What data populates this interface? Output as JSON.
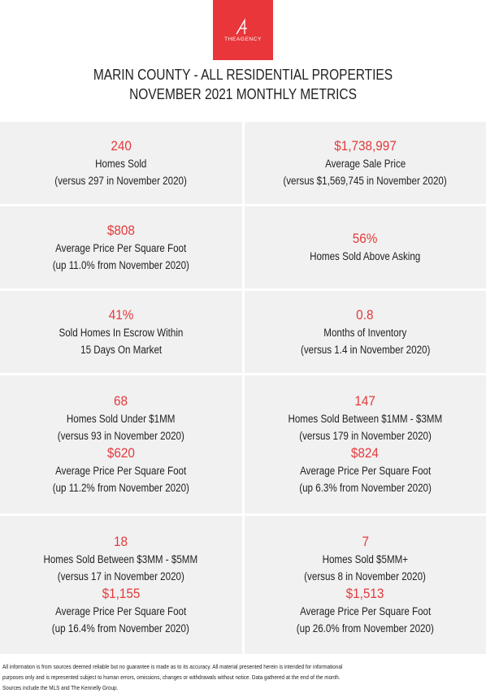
{
  "logo": {
    "text": "THEAGENCY",
    "color": "#e8363a"
  },
  "header": {
    "title_line1": "MARIN COUNTY - ALL RESIDENTIAL PROPERTIES",
    "title_line2": "NOVEMBER 2021 MONTHLY METRICS"
  },
  "accent_color": "#e3393c",
  "metrics": {
    "homes_sold": {
      "value": "240",
      "label": "Homes Sold",
      "note": "(versus 297 in November 2020)"
    },
    "avg_sale_price": {
      "value": "$1,738,997",
      "label": "Average Sale Price",
      "note": "(versus $1,569,745 in November 2020)"
    },
    "avg_ppsf": {
      "value": "$808",
      "label": "Average Price Per Square Foot",
      "note": "(up 11.0% from November 2020)"
    },
    "above_asking": {
      "value": "56%",
      "label": "Homes Sold Above Asking"
    },
    "escrow": {
      "value": "41%",
      "label_line1": "Sold Homes In Escrow Within",
      "label_line2": "15 Days On Market"
    },
    "inventory": {
      "value": "0.8",
      "label": "Months of Inventory",
      "note": "(versus 1.4 in November 2020)"
    },
    "under_1mm": {
      "value": "68",
      "label": "Homes Sold Under $1MM",
      "note": "(versus 93 in November 2020)",
      "ppsf_value": "$620",
      "ppsf_label": "Average Price Per Square Foot",
      "ppsf_note": "(up 11.2% from November 2020)"
    },
    "between_1_3mm": {
      "value": "147",
      "label": "Homes Sold Between $1MM - $3MM",
      "note": "(versus 179 in November 2020)",
      "ppsf_value": "$824",
      "ppsf_label": "Average Price Per Square Foot",
      "ppsf_note": "(up 6.3% from November 2020)"
    },
    "between_3_5mm": {
      "value": "18",
      "label": "Homes Sold Between $3MM - $5MM",
      "note": "(versus 17 in November 2020)",
      "ppsf_value": "$1,155",
      "ppsf_label": "Average Price Per Square Foot",
      "ppsf_note": "(up 16.4% from November 2020)"
    },
    "over_5mm": {
      "value": "7",
      "label": "Homes Sold $5MM+",
      "note": "(versus 8 in November 2020)",
      "ppsf_value": "$1,513",
      "ppsf_label": "Average Price Per Square Foot",
      "ppsf_note": "(up 26.0% from November 2020)"
    }
  },
  "disclaimer": {
    "line1": "All information is from sources deemed reliable but no guarantee is made as to its accuracy. All material presented herein is intended for informational",
    "line2": "purposes only and is represented subject to human errors, omissions, changes or withdrawals without notice. Data gathered at the end of the month.",
    "line3": "Sources include the MLS and The Kennelly Group."
  }
}
